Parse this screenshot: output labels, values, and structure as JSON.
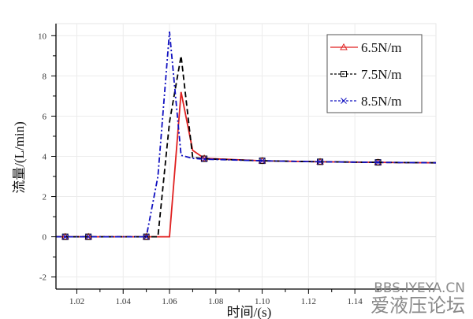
{
  "chart_data": {
    "type": "line",
    "title": "",
    "xlabel": "时间/(s)",
    "ylabel": "流量/(L/min)",
    "xlim": [
      1.011,
      1.175
    ],
    "ylim": [
      -2.6,
      10.6
    ],
    "xticks": [
      1.02,
      1.04,
      1.06,
      1.08,
      1.1,
      1.12,
      1.14
    ],
    "xtick_labels": [
      "1.02",
      "1.04",
      "1.06",
      "1.08",
      "1.10",
      "1.12",
      "1.14"
    ],
    "yticks": [
      -2,
      0,
      2,
      4,
      6,
      8,
      10
    ],
    "ytick_labels": [
      "-2",
      "0",
      "2",
      "4",
      "6",
      "8",
      "10"
    ],
    "grid": true,
    "legend_position": "top-right",
    "marker_x": [
      1.015,
      1.025,
      1.05,
      1.075,
      1.1,
      1.125,
      1.15
    ],
    "series": [
      {
        "name": "6.5N/m",
        "color": "#e02020",
        "dash": "solid",
        "marker": "triangle",
        "x": [
          1.011,
          1.015,
          1.025,
          1.05,
          1.055,
          1.06,
          1.065,
          1.07,
          1.075,
          1.1,
          1.125,
          1.15,
          1.175
        ],
        "y": [
          0,
          0,
          0,
          0,
          0,
          0,
          7.2,
          4.3,
          3.9,
          3.78,
          3.73,
          3.7,
          3.68
        ]
      },
      {
        "name": "7.5N/m",
        "color": "#000000",
        "dash": "dashed",
        "marker": "square",
        "x": [
          1.011,
          1.015,
          1.025,
          1.05,
          1.055,
          1.06,
          1.065,
          1.07,
          1.075,
          1.1,
          1.125,
          1.15,
          1.175
        ],
        "y": [
          0,
          0,
          0,
          0,
          0,
          5.7,
          9.0,
          3.95,
          3.88,
          3.78,
          3.73,
          3.7,
          3.68
        ]
      },
      {
        "name": "8.5N/m",
        "color": "#1010c0",
        "dash": "dashdot",
        "marker": "x",
        "x": [
          1.011,
          1.015,
          1.025,
          1.05,
          1.055,
          1.06,
          1.065,
          1.07,
          1.075,
          1.1,
          1.125,
          1.15,
          1.175
        ],
        "y": [
          0,
          0,
          0,
          0,
          3.0,
          10.2,
          4.05,
          3.9,
          3.86,
          3.78,
          3.73,
          3.7,
          3.68
        ]
      }
    ]
  },
  "watermark": {
    "line1": "BBS.IYEYA.CN",
    "line2": "爱液压论坛"
  }
}
